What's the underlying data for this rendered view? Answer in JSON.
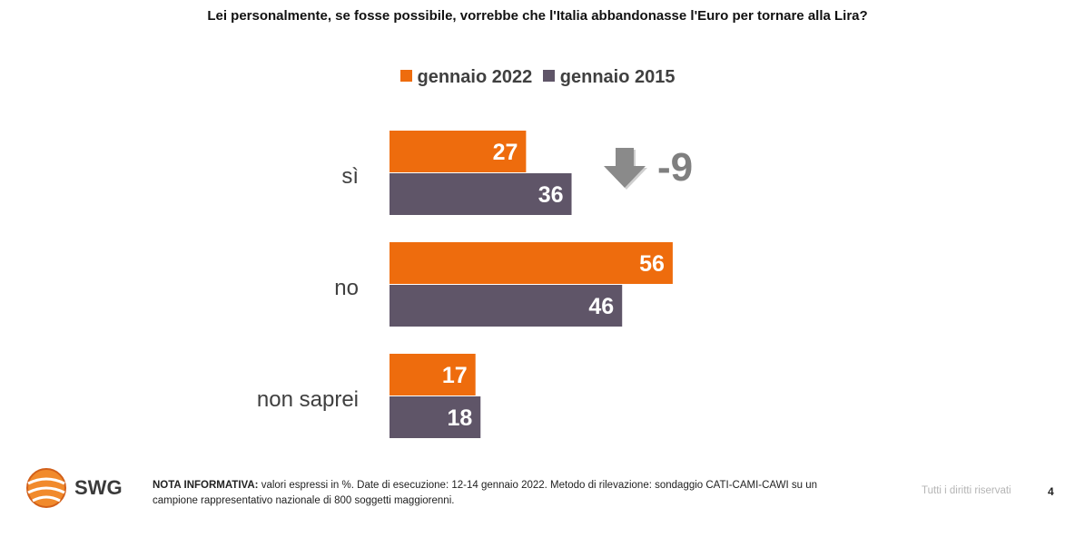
{
  "chart_data": {
    "type": "bar",
    "orientation": "horizontal",
    "title": "Lei personalmente, se fosse possibile, vorrebbe che l'Italia abbandonasse l'Euro per tornare alla Lira?",
    "categories": [
      "sì",
      "no",
      "non saprei"
    ],
    "series": [
      {
        "name": "gennaio 2022",
        "values": [
          27,
          56,
          17
        ],
        "color": "#ee6c0d"
      },
      {
        "name": "gennaio 2015",
        "values": [
          36,
          46,
          18
        ],
        "color": "#5f5568"
      }
    ],
    "legend_position": "top",
    "grid": false,
    "xlim": [
      0,
      60
    ],
    "annotation": {
      "text": "-9",
      "icon": "arrow-down-icon",
      "category": "sì"
    }
  },
  "footer": {
    "logo_text": "SWG",
    "note_label": "NOTA INFORMATIVA:",
    "note_text": "valori espressi in %. Date di esecuzione: 12-14 gennaio 2022. Metodo di rilevazione: sondaggio CATI-CAMI-CAWI su un campione rappresentativo nazionale di 800 soggetti maggiorenni.",
    "rights": "Tutti i diritti riservati",
    "page_number": "4"
  }
}
